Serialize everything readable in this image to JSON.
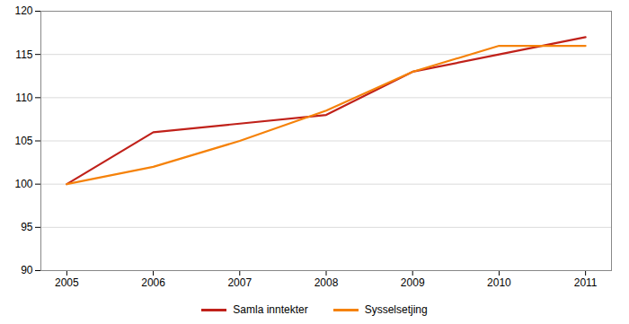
{
  "chart_data": {
    "type": "line",
    "x": [
      2005,
      2006,
      2007,
      2008,
      2009,
      2010,
      2011
    ],
    "series": [
      {
        "name": "Samla inntekter",
        "color": "#c0211a",
        "values": [
          100,
          106.0,
          107.0,
          108.0,
          113.0,
          115.0,
          117.0
        ]
      },
      {
        "name": "Sysselsetjing",
        "color": "#f5820a",
        "values": [
          100,
          102.0,
          105.0,
          108.5,
          113.0,
          116.0,
          116.0
        ]
      }
    ],
    "xlim": [
      2004.7,
      2011.3
    ],
    "xticks": [
      2005,
      2006,
      2007,
      2008,
      2009,
      2010,
      2011
    ],
    "ylim": [
      90,
      120
    ],
    "yticks": [
      90,
      95,
      100,
      105,
      110,
      115,
      120
    ],
    "grid": true,
    "legend": "bottom"
  }
}
